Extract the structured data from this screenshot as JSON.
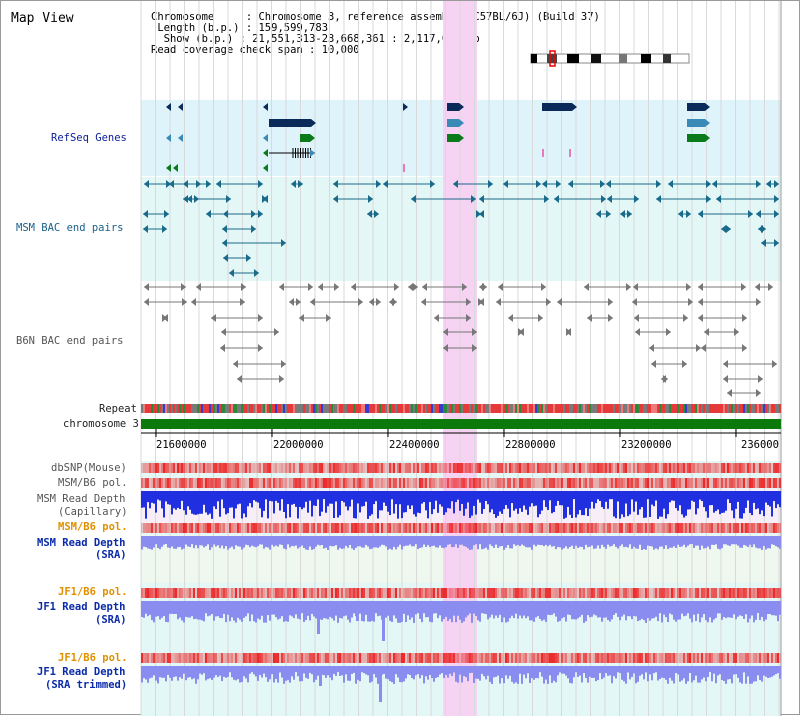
{
  "title": "Map View",
  "info": {
    "chromosome_key": "Chromosome",
    "chromosome_val": "Chromosome 3, reference assembly (C57BL/6J) (Build 37)",
    "length_key": "Length (b.p.)",
    "length_val": "159,599,783",
    "show_key": "Show (b.p.)",
    "show_val": "21,551,313-23,668,361 : 2,117,049 bp",
    "span_key": "Read coverage check span",
    "span_val": "10,000"
  },
  "tracks": {
    "refseq": "RefSeq Genes",
    "msm_bac": "MSM BAC end pairs",
    "b6n_bac": "B6N BAC end pairs",
    "repeat": "Repeat",
    "chromosome": "chromosome 3",
    "dbsnp": "dbSNP(Mouse)",
    "msm_b6_pol_1": "MSM/B6 pol.",
    "msm_read_depth_cap_1": "MSM Read Depth",
    "msm_read_depth_cap_2": "(Capillary)",
    "msm_b6_pol_2": "MSM/B6 pol.",
    "msm_read_depth_sra_1": "MSM Read Depth",
    "msm_read_depth_sra_2": "(SRA)",
    "jf1_b6_pol_1": "JF1/B6 pol.",
    "jf1_read_depth_sra_1": "JF1 Read Depth",
    "jf1_read_depth_sra_2": "(SRA)",
    "jf1_b6_pol_2": "JF1/B6 pol.",
    "jf1_read_depth_trim_1": "JF1 Read Depth",
    "jf1_read_depth_trim_2": "(SRA trimmed)"
  },
  "axis_ticks": [
    "21600000",
    "22000000",
    "22400000",
    "22800000",
    "23200000",
    "236000"
  ],
  "colors": {
    "highlight": "#f6d2f3",
    "refseq_bg": "#dff3fb",
    "msm_bg": "#e3f7f7",
    "chromosome_bar": "#0b7a0b",
    "gene_navy": "#0a2a5a",
    "gene_teal": "#3a8ab8",
    "gene_green": "#0a7a1a",
    "bac_teal": "#1a6a8a",
    "bac_gray": "#777777",
    "depth_blue": "#2030e0",
    "depth_light": "#8a8cf0"
  }
}
